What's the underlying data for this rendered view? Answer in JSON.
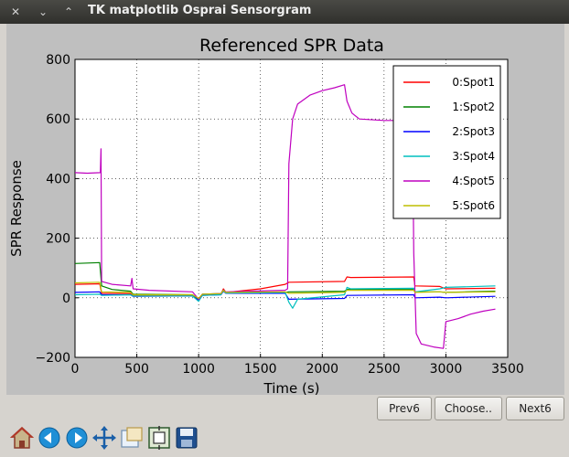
{
  "window": {
    "title": "TK matplotlib Osprai Sensorgram",
    "close_glyph": "✕",
    "minimize_glyph": "⌄",
    "maximize_glyph": "⌃"
  },
  "nav": {
    "prev_label": "Prev6",
    "choose_label": "Choose..",
    "next_label": "Next6"
  },
  "toolbar": {
    "icons": [
      "home-icon",
      "back-icon",
      "forward-icon",
      "pan-icon",
      "zoom-icon",
      "subplots-icon",
      "save-icon"
    ]
  },
  "chart_data": {
    "type": "line",
    "title": "Referenced SPR Data",
    "xlabel": "Time (s)",
    "ylabel": "SPR Response",
    "xlim": [
      0,
      3500
    ],
    "ylim": [
      -200,
      800
    ],
    "xticks": [
      0,
      500,
      1000,
      1500,
      2000,
      2500,
      3000,
      3500
    ],
    "yticks": [
      -200,
      0,
      200,
      400,
      600,
      800
    ],
    "grid": true,
    "legend_position": "top-right",
    "series": [
      {
        "name": "0:Spot1",
        "color": "#ff0000",
        "points": [
          [
            0,
            45
          ],
          [
            200,
            47
          ],
          [
            215,
            15
          ],
          [
            450,
            14
          ],
          [
            470,
            8
          ],
          [
            950,
            8
          ],
          [
            1000,
            -3
          ],
          [
            1030,
            10
          ],
          [
            1180,
            12
          ],
          [
            1200,
            30
          ],
          [
            1220,
            18
          ],
          [
            1500,
            30
          ],
          [
            1700,
            45
          ],
          [
            1730,
            52
          ],
          [
            2180,
            55
          ],
          [
            2200,
            70
          ],
          [
            2230,
            68
          ],
          [
            2740,
            70
          ],
          [
            2750,
            40
          ],
          [
            2950,
            38
          ],
          [
            3000,
            30
          ],
          [
            3400,
            32
          ]
        ]
      },
      {
        "name": "1:Spot2",
        "color": "#008000",
        "points": [
          [
            0,
            115
          ],
          [
            200,
            118
          ],
          [
            215,
            40
          ],
          [
            300,
            28
          ],
          [
            450,
            22
          ],
          [
            470,
            12
          ],
          [
            950,
            10
          ],
          [
            1000,
            -5
          ],
          [
            1030,
            12
          ],
          [
            1180,
            14
          ],
          [
            1200,
            26
          ],
          [
            1220,
            18
          ],
          [
            1700,
            18
          ],
          [
            1730,
            20
          ],
          [
            2180,
            22
          ],
          [
            2200,
            28
          ],
          [
            2740,
            28
          ],
          [
            2750,
            20
          ],
          [
            2950,
            20
          ],
          [
            3000,
            18
          ],
          [
            3400,
            22
          ]
        ]
      },
      {
        "name": "2:Spot3",
        "color": "#0000ff",
        "points": [
          [
            0,
            18
          ],
          [
            200,
            20
          ],
          [
            215,
            10
          ],
          [
            450,
            10
          ],
          [
            470,
            5
          ],
          [
            950,
            6
          ],
          [
            1000,
            -8
          ],
          [
            1030,
            8
          ],
          [
            1180,
            10
          ],
          [
            1200,
            22
          ],
          [
            1220,
            15
          ],
          [
            1700,
            15
          ],
          [
            1730,
            -5
          ],
          [
            2180,
            -2
          ],
          [
            2200,
            8
          ],
          [
            2740,
            10
          ],
          [
            2750,
            0
          ],
          [
            2950,
            2
          ],
          [
            3000,
            0
          ],
          [
            3400,
            5
          ]
        ]
      },
      {
        "name": "3:Spot4",
        "color": "#00bfbf",
        "points": [
          [
            0,
            10
          ],
          [
            200,
            12
          ],
          [
            215,
            8
          ],
          [
            450,
            10
          ],
          [
            470,
            6
          ],
          [
            950,
            6
          ],
          [
            1000,
            -12
          ],
          [
            1030,
            8
          ],
          [
            1180,
            10
          ],
          [
            1200,
            24
          ],
          [
            1220,
            16
          ],
          [
            1700,
            18
          ],
          [
            1730,
            -15
          ],
          [
            1760,
            -35
          ],
          [
            1800,
            -5
          ],
          [
            2180,
            10
          ],
          [
            2200,
            35
          ],
          [
            2230,
            30
          ],
          [
            2740,
            32
          ],
          [
            2750,
            20
          ],
          [
            2950,
            30
          ],
          [
            3000,
            35
          ],
          [
            3400,
            40
          ]
        ]
      },
      {
        "name": "4:Spot5",
        "color": "#bf00bf",
        "points": [
          [
            0,
            420
          ],
          [
            100,
            418
          ],
          [
            205,
            420
          ],
          [
            210,
            500
          ],
          [
            215,
            55
          ],
          [
            300,
            45
          ],
          [
            450,
            40
          ],
          [
            460,
            65
          ],
          [
            470,
            30
          ],
          [
            600,
            25
          ],
          [
            950,
            20
          ],
          [
            1000,
            -5
          ],
          [
            1030,
            12
          ],
          [
            1180,
            14
          ],
          [
            1200,
            26
          ],
          [
            1220,
            20
          ],
          [
            1700,
            25
          ],
          [
            1720,
            30
          ],
          [
            1730,
            450
          ],
          [
            1760,
            600
          ],
          [
            1800,
            650
          ],
          [
            1900,
            680
          ],
          [
            2000,
            695
          ],
          [
            2100,
            705
          ],
          [
            2180,
            715
          ],
          [
            2200,
            660
          ],
          [
            2240,
            620
          ],
          [
            2300,
            600
          ],
          [
            2500,
            595
          ],
          [
            2730,
            595
          ],
          [
            2740,
            150
          ],
          [
            2760,
            -120
          ],
          [
            2800,
            -155
          ],
          [
            2900,
            -165
          ],
          [
            2980,
            -170
          ],
          [
            3000,
            -80
          ],
          [
            3100,
            -70
          ],
          [
            3200,
            -55
          ],
          [
            3300,
            -45
          ],
          [
            3400,
            -38
          ]
        ]
      },
      {
        "name": "5:Spot6",
        "color": "#bfbf00",
        "points": [
          [
            0,
            50
          ],
          [
            200,
            52
          ],
          [
            215,
            20
          ],
          [
            450,
            18
          ],
          [
            470,
            10
          ],
          [
            950,
            10
          ],
          [
            1000,
            -2
          ],
          [
            1030,
            12
          ],
          [
            1180,
            14
          ],
          [
            1200,
            25
          ],
          [
            1220,
            18
          ],
          [
            1700,
            20
          ],
          [
            1730,
            15
          ],
          [
            2180,
            18
          ],
          [
            2200,
            25
          ],
          [
            2740,
            25
          ],
          [
            2750,
            18
          ],
          [
            2950,
            20
          ],
          [
            3000,
            18
          ],
          [
            3400,
            20
          ]
        ]
      }
    ]
  }
}
